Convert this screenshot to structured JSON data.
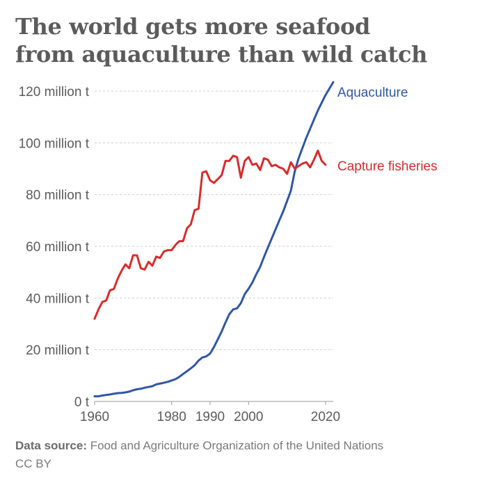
{
  "title_lines": [
    "The world gets more seafood",
    "from aquaculture than wild catch"
  ],
  "footer": {
    "source_label": "Data source:",
    "source_text": " Food and Agriculture Organization of the United Nations",
    "license": "CC BY"
  },
  "chart_data": {
    "type": "line",
    "title": "The world gets more seafood from aquaculture than wild catch",
    "xlabel": "",
    "ylabel": "",
    "xlim": [
      1960,
      2022
    ],
    "ylim": [
      0,
      120
    ],
    "x_ticks": [
      1960,
      1980,
      1990,
      2000,
      2020
    ],
    "x_tick_labels": [
      "1960",
      "1980",
      "1990",
      "2000",
      "2020"
    ],
    "y_ticks": [
      0,
      20,
      40,
      60,
      80,
      100,
      120
    ],
    "y_tick_labels": [
      "0 t",
      "20 million t",
      "40 million t",
      "60 million t",
      "80 million t",
      "100 million t",
      "120 million t"
    ],
    "grid": true,
    "series": [
      {
        "name": "Aquaculture",
        "color": "#2f56a6",
        "x": [
          1960,
          1961,
          1962,
          1963,
          1964,
          1965,
          1966,
          1967,
          1968,
          1969,
          1970,
          1971,
          1972,
          1973,
          1974,
          1975,
          1976,
          1977,
          1978,
          1979,
          1980,
          1981,
          1982,
          1983,
          1984,
          1985,
          1986,
          1987,
          1988,
          1989,
          1990,
          1991,
          1992,
          1993,
          1994,
          1995,
          1996,
          1997,
          1998,
          1999,
          2000,
          2001,
          2002,
          2003,
          2004,
          2005,
          2006,
          2007,
          2008,
          2009,
          2010,
          2011,
          2012,
          2013,
          2014,
          2015,
          2016,
          2017,
          2018,
          2019,
          2020,
          2021,
          2022
        ],
        "values": [
          2.0,
          2.0,
          2.3,
          2.5,
          2.7,
          3.0,
          3.2,
          3.3,
          3.5,
          3.8,
          4.3,
          4.7,
          4.9,
          5.3,
          5.6,
          5.9,
          6.6,
          6.9,
          7.2,
          7.6,
          8.1,
          8.6,
          9.5,
          10.6,
          11.7,
          12.8,
          14.0,
          15.8,
          17.0,
          17.4,
          18.5,
          21.0,
          24.0,
          27.0,
          30.5,
          33.7,
          35.6,
          36.0,
          38.0,
          41.5,
          43.6,
          46.0,
          49.2,
          52.0,
          55.8,
          59.5,
          63.0,
          66.5,
          70.0,
          73.5,
          77.5,
          81.5,
          89.0,
          94.0,
          98.0,
          102.0,
          105.5,
          109.0,
          112.5,
          115.5,
          118.5,
          121.0,
          123.5
        ]
      },
      {
        "name": "Capture fisheries",
        "color": "#d92b2b",
        "x": [
          1960,
          1961,
          1962,
          1963,
          1964,
          1965,
          1966,
          1967,
          1968,
          1969,
          1970,
          1971,
          1972,
          1973,
          1974,
          1975,
          1976,
          1977,
          1978,
          1979,
          1980,
          1981,
          1982,
          1983,
          1984,
          1985,
          1986,
          1987,
          1988,
          1989,
          1990,
          1991,
          1992,
          1993,
          1994,
          1995,
          1996,
          1997,
          1998,
          1999,
          2000,
          2001,
          2002,
          2003,
          2004,
          2005,
          2006,
          2007,
          2008,
          2009,
          2010,
          2011,
          2012,
          2013,
          2014,
          2015,
          2016,
          2017,
          2018,
          2019,
          2020,
          2021,
          2022
        ],
        "values": [
          32.0,
          35.5,
          38.5,
          39.0,
          43.0,
          43.5,
          47.5,
          50.5,
          53.0,
          51.5,
          56.5,
          56.5,
          51.5,
          51.0,
          54.0,
          52.5,
          56.0,
          55.5,
          58.0,
          58.5,
          58.5,
          60.5,
          62.0,
          62.0,
          67.0,
          68.5,
          74.0,
          74.5,
          88.5,
          89.0,
          85.5,
          84.5,
          86.0,
          87.5,
          93.0,
          93.0,
          95.0,
          94.5,
          86.5,
          93.0,
          94.5,
          91.5,
          92.0,
          89.5,
          94.0,
          93.5,
          91.0,
          91.5,
          90.5,
          90.0,
          88.0,
          92.5,
          90.0,
          91.0,
          92.0,
          92.5,
          90.5,
          93.5,
          97.0,
          93.0,
          91.5,
          null,
          null
        ]
      }
    ],
    "legend": "inline-right"
  }
}
